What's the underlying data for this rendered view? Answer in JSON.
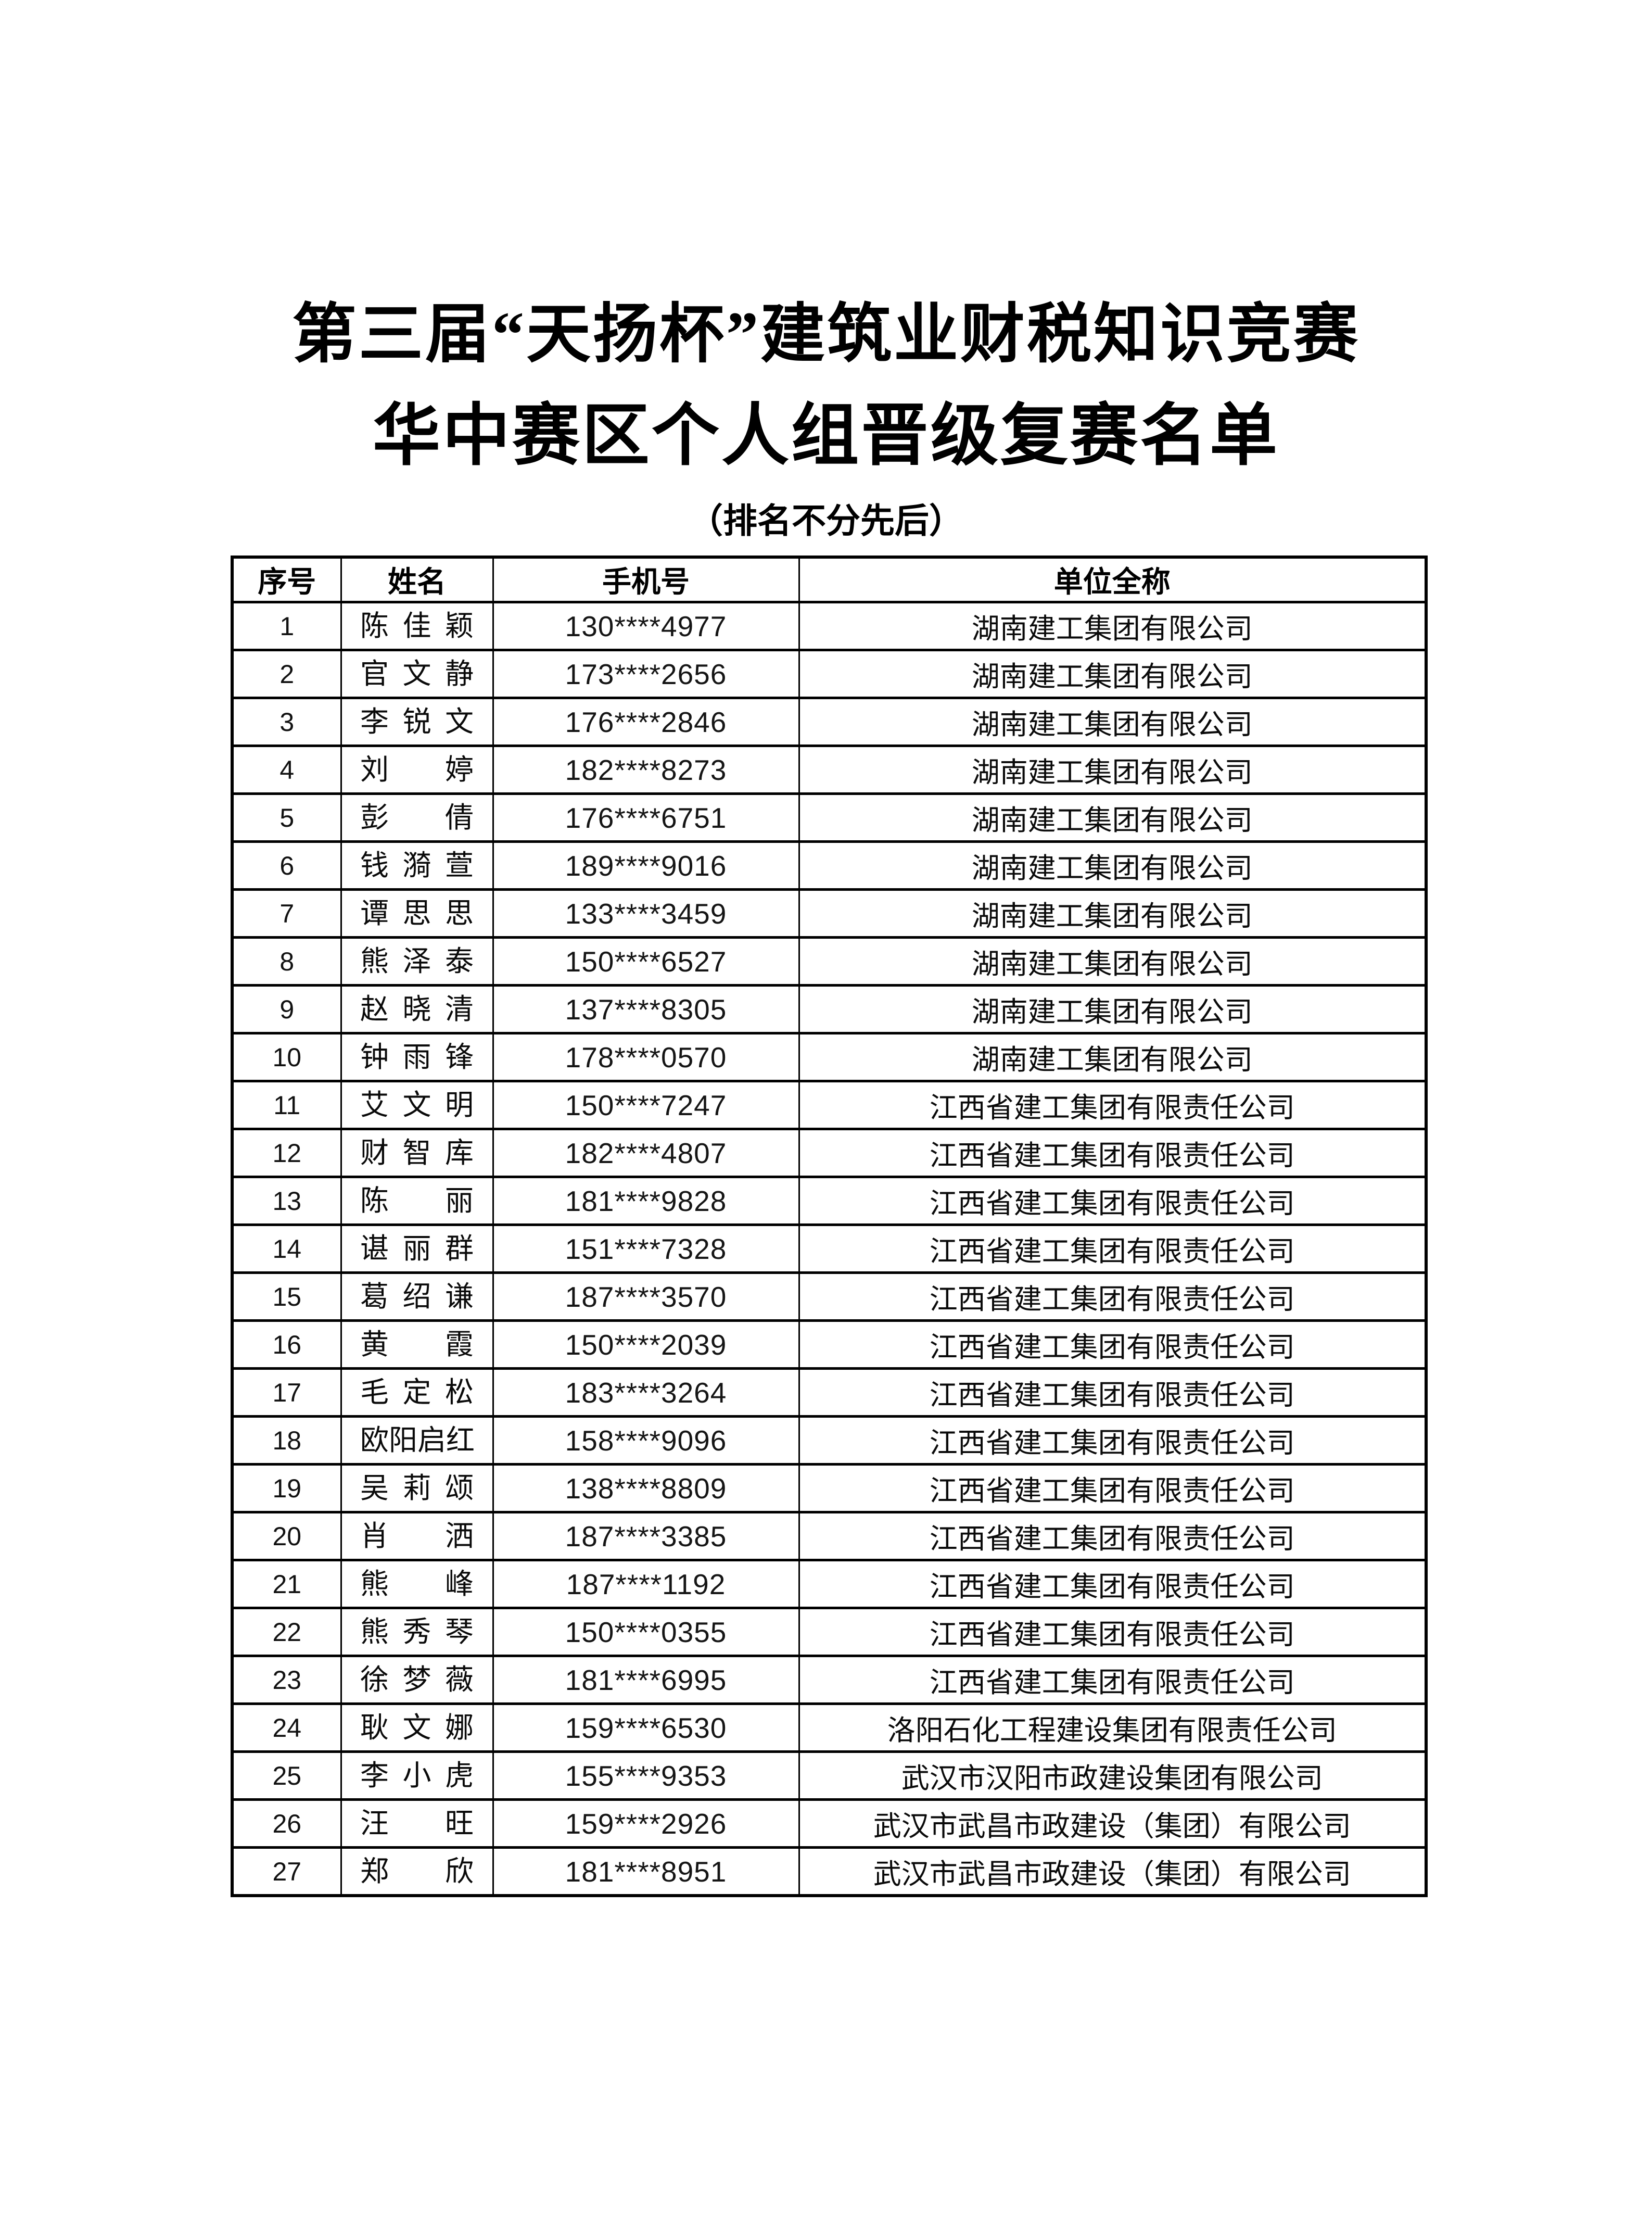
{
  "document": {
    "title_line1": "第三届“天扬杯”建筑业财税知识竞赛",
    "title_line2": "华中赛区个人组晋级复赛名单",
    "note": "（排名不分先后）"
  },
  "table": {
    "headers": {
      "serial": "序号",
      "name": "姓名",
      "phone": "手机号",
      "company": "单位全称"
    },
    "rows": [
      {
        "serial": "1",
        "name": "陈佳颖",
        "phone": "130****4977",
        "company": "湖南建工集团有限公司"
      },
      {
        "serial": "2",
        "name": "官文静",
        "phone": "173****2656",
        "company": "湖南建工集团有限公司"
      },
      {
        "serial": "3",
        "name": "李锐文",
        "phone": "176****2846",
        "company": "湖南建工集团有限公司"
      },
      {
        "serial": "4",
        "name": "刘婷",
        "phone": "182****8273",
        "company": "湖南建工集团有限公司"
      },
      {
        "serial": "5",
        "name": "彭倩",
        "phone": "176****6751",
        "company": "湖南建工集团有限公司"
      },
      {
        "serial": "6",
        "name": "钱漪萱",
        "phone": "189****9016",
        "company": "湖南建工集团有限公司"
      },
      {
        "serial": "7",
        "name": "谭思思",
        "phone": "133****3459",
        "company": "湖南建工集团有限公司"
      },
      {
        "serial": "8",
        "name": "熊泽泰",
        "phone": "150****6527",
        "company": "湖南建工集团有限公司"
      },
      {
        "serial": "9",
        "name": "赵晓清",
        "phone": "137****8305",
        "company": "湖南建工集团有限公司"
      },
      {
        "serial": "10",
        "name": "钟雨锋",
        "phone": "178****0570",
        "company": "湖南建工集团有限公司"
      },
      {
        "serial": "11",
        "name": "艾文明",
        "phone": "150****7247",
        "company": "江西省建工集团有限责任公司"
      },
      {
        "serial": "12",
        "name": "财智库",
        "phone": "182****4807",
        "company": "江西省建工集团有限责任公司"
      },
      {
        "serial": "13",
        "name": "陈丽",
        "phone": "181****9828",
        "company": "江西省建工集团有限责任公司"
      },
      {
        "serial": "14",
        "name": "谌丽群",
        "phone": "151****7328",
        "company": "江西省建工集团有限责任公司"
      },
      {
        "serial": "15",
        "name": "葛绍谦",
        "phone": "187****3570",
        "company": "江西省建工集团有限责任公司"
      },
      {
        "serial": "16",
        "name": "黄霞",
        "phone": "150****2039",
        "company": "江西省建工集团有限责任公司"
      },
      {
        "serial": "17",
        "name": "毛定松",
        "phone": "183****3264",
        "company": "江西省建工集团有限责任公司"
      },
      {
        "serial": "18",
        "name": "欧阳启红",
        "phone": "158****9096",
        "company": "江西省建工集团有限责任公司"
      },
      {
        "serial": "19",
        "name": "吴莉颂",
        "phone": "138****8809",
        "company": "江西省建工集团有限责任公司"
      },
      {
        "serial": "20",
        "name": "肖洒",
        "phone": "187****3385",
        "company": "江西省建工集团有限责任公司"
      },
      {
        "serial": "21",
        "name": "熊峰",
        "phone": "187****1192",
        "company": "江西省建工集团有限责任公司"
      },
      {
        "serial": "22",
        "name": "熊秀琴",
        "phone": "150****0355",
        "company": "江西省建工集团有限责任公司"
      },
      {
        "serial": "23",
        "name": "徐梦薇",
        "phone": "181****6995",
        "company": "江西省建工集团有限责任公司"
      },
      {
        "serial": "24",
        "name": "耿文娜",
        "phone": "159****6530",
        "company": "洛阳石化工程建设集团有限责任公司"
      },
      {
        "serial": "25",
        "name": "李小虎",
        "phone": "155****9353",
        "company": "武汉市汉阳市政建设集团有限公司"
      },
      {
        "serial": "26",
        "name": "汪旺",
        "phone": "159****2926",
        "company": "武汉市武昌市政建设（集团）有限公司"
      },
      {
        "serial": "27",
        "name": "郑欣",
        "phone": "181****8951",
        "company": "武汉市武昌市政建设（集团）有限公司"
      }
    ]
  }
}
